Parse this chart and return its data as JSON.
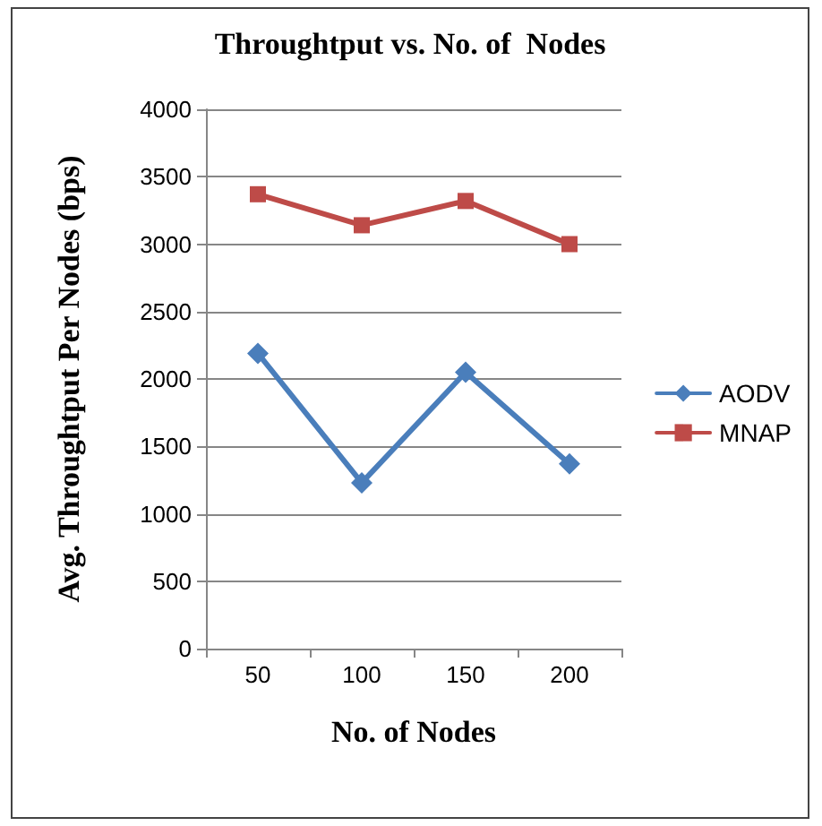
{
  "chart_data": {
    "type": "line",
    "title": "Throughtput vs. No. of  Nodes",
    "xlabel": "No. of Nodes",
    "ylabel": "Avg. Throughtput Per Nodes (bps)",
    "categories": [
      "50",
      "100",
      "150",
      "200"
    ],
    "series": [
      {
        "name": "AODV",
        "color": "#4a7ebb",
        "marker": "diamond",
        "values": [
          2190,
          1230,
          2050,
          1370
        ]
      },
      {
        "name": "MNAP",
        "color": "#be4b48",
        "marker": "square",
        "values": [
          3370,
          3140,
          3320,
          3000
        ]
      }
    ],
    "ylim": [
      0,
      4000
    ],
    "yticks": [
      0,
      500,
      1000,
      1500,
      2000,
      2500,
      3000,
      3500,
      4000
    ],
    "grid": "y",
    "legend": "right"
  }
}
